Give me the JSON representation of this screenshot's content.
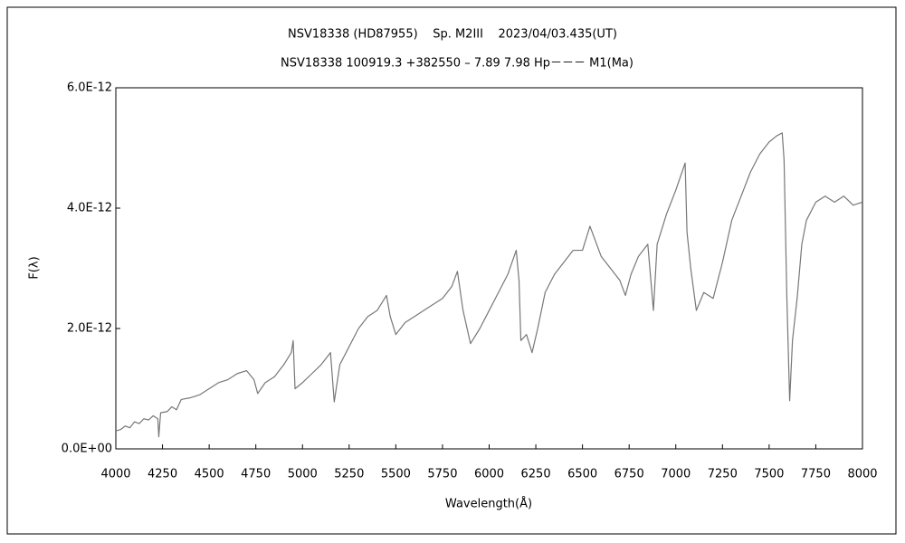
{
  "chart_data": {
    "type": "line",
    "title": "NSV18338 (HD87955)    Sp. M2III    2023/04/03.435(UT)",
    "subtitle": "NSV18338 100919.3 +382550 – 7.89 7.98 Hp－－－ M1(Ma)",
    "x_label": "Wavelength(Å)",
    "y_label": "F(λ)",
    "xlim": [
      4000,
      8000
    ],
    "xticks": [
      4000,
      4250,
      4500,
      4750,
      5000,
      5250,
      5500,
      5750,
      6000,
      6250,
      6500,
      6750,
      7000,
      7250,
      7500,
      7750,
      8000
    ],
    "ylim": [
      0,
      6e-12
    ],
    "yticks": [
      {
        "value": 0,
        "label": "0.0E+00"
      },
      {
        "value": 2e-12,
        "label": "2.0E-12"
      },
      {
        "value": 4e-12,
        "label": "4.0E-12"
      },
      {
        "value": 6e-12,
        "label": "6.0E-12"
      }
    ],
    "grid": false,
    "color": "#777777",
    "x": [
      4000,
      4025,
      4050,
      4075,
      4100,
      4125,
      4150,
      4175,
      4200,
      4225,
      4230,
      4240,
      4275,
      4300,
      4325,
      4350,
      4400,
      4450,
      4500,
      4550,
      4600,
      4650,
      4700,
      4740,
      4760,
      4800,
      4850,
      4900,
      4940,
      4950,
      4960,
      5000,
      5050,
      5100,
      5150,
      5170,
      5200,
      5250,
      5300,
      5350,
      5400,
      5450,
      5470,
      5500,
      5550,
      5600,
      5650,
      5700,
      5750,
      5800,
      5830,
      5860,
      5900,
      5950,
      6000,
      6050,
      6100,
      6145,
      6160,
      6170,
      6200,
      6230,
      6260,
      6300,
      6350,
      6400,
      6450,
      6500,
      6540,
      6600,
      6650,
      6700,
      6730,
      6760,
      6800,
      6850,
      6880,
      6900,
      6950,
      7000,
      7050,
      7060,
      7080,
      7110,
      7150,
      7200,
      7250,
      7300,
      7350,
      7400,
      7450,
      7500,
      7540,
      7570,
      7580,
      7595,
      7610,
      7625,
      7650,
      7675,
      7700,
      7750,
      7800,
      7850,
      7900,
      7950,
      8000
    ],
    "values": [
      3e-13,
      3.2e-13,
      3.8e-13,
      3.5e-13,
      4.5e-13,
      4.2e-13,
      5e-13,
      4.8e-13,
      5.5e-13,
      5e-13,
      2e-13,
      6e-13,
      6.2e-13,
      7e-13,
      6.5e-13,
      8.2e-13,
      8.5e-13,
      9e-13,
      1e-12,
      1.1e-12,
      1.15e-12,
      1.25e-12,
      1.3e-12,
      1.15e-12,
      9.2e-13,
      1.1e-12,
      1.2e-12,
      1.4e-12,
      1.6e-12,
      1.8e-12,
      1e-12,
      1.1e-12,
      1.25e-12,
      1.4e-12,
      1.6e-12,
      7.8e-13,
      1.4e-12,
      1.7e-12,
      2e-12,
      2.2e-12,
      2.3e-12,
      2.55e-12,
      2.2e-12,
      1.9e-12,
      2.1e-12,
      2.2e-12,
      2.3e-12,
      2.4e-12,
      2.5e-12,
      2.7e-12,
      2.95e-12,
      2.3e-12,
      1.75e-12,
      2e-12,
      2.3e-12,
      2.6e-12,
      2.9e-12,
      3.3e-12,
      2.8e-12,
      1.8e-12,
      1.9e-12,
      1.6e-12,
      2e-12,
      2.6e-12,
      2.9e-12,
      3.1e-12,
      3.3e-12,
      3.3e-12,
      3.7e-12,
      3.2e-12,
      3e-12,
      2.8e-12,
      2.55e-12,
      2.9e-12,
      3.2e-12,
      3.4e-12,
      2.3e-12,
      3.4e-12,
      3.9e-12,
      4.3e-12,
      4.75e-12,
      3.6e-12,
      3e-12,
      2.3e-12,
      2.6e-12,
      2.5e-12,
      3.1e-12,
      3.8e-12,
      4.2e-12,
      4.6e-12,
      4.9e-12,
      5.1e-12,
      5.2e-12,
      5.25e-12,
      4.8e-12,
      2.5e-12,
      8e-13,
      1.8e-12,
      2.5e-12,
      3.4e-12,
      3.8e-12,
      4.1e-12,
      4.2e-12,
      4.1e-12,
      4.2e-12,
      4.05e-12,
      4.1e-12
    ]
  }
}
